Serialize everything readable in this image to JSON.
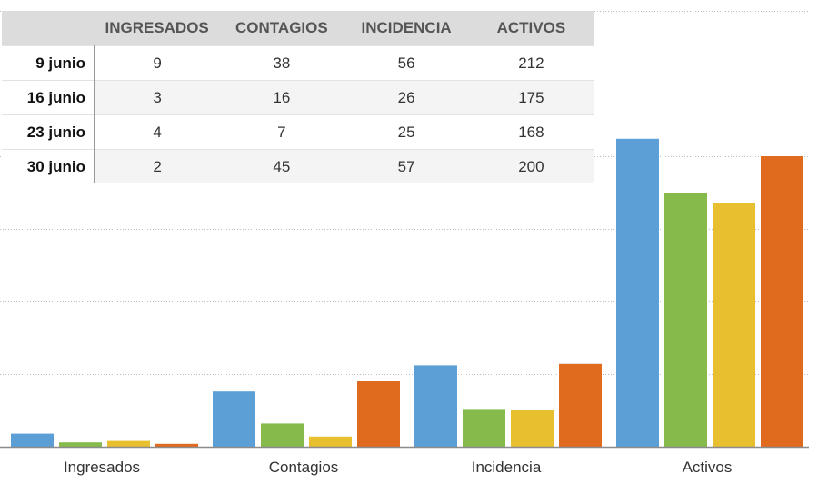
{
  "chart_data": {
    "type": "bar",
    "categories": [
      "Ingresados",
      "Contagios",
      "Incidencia",
      "Activos"
    ],
    "series": [
      {
        "name": "9 junio",
        "color": "#5b9fd6",
        "values": [
          9,
          38,
          56,
          212
        ]
      },
      {
        "name": "16 junio",
        "color": "#86bb4c",
        "values": [
          3,
          16,
          26,
          175
        ]
      },
      {
        "name": "23 junio",
        "color": "#e8bf2e",
        "values": [
          4,
          7,
          25,
          168
        ]
      },
      {
        "name": "30 junio",
        "color": "#e06a1e",
        "values": [
          2,
          45,
          57,
          200
        ]
      }
    ],
    "ylim": [
      0,
      300
    ],
    "grid": true,
    "table": {
      "headers": [
        "",
        "INGRESADOS",
        "CONTAGIOS",
        "INCIDENCIA",
        "ACTIVOS"
      ],
      "rows": [
        {
          "label": "9 junio",
          "cells": [
            "9",
            "38",
            "56",
            "212"
          ]
        },
        {
          "label": "16 junio",
          "cells": [
            "3",
            "16",
            "26",
            "175"
          ]
        },
        {
          "label": "23 junio",
          "cells": [
            "4",
            "7",
            "25",
            "168"
          ]
        },
        {
          "label": "30 junio",
          "cells": [
            "2",
            "45",
            "57",
            "200"
          ]
        }
      ]
    }
  }
}
